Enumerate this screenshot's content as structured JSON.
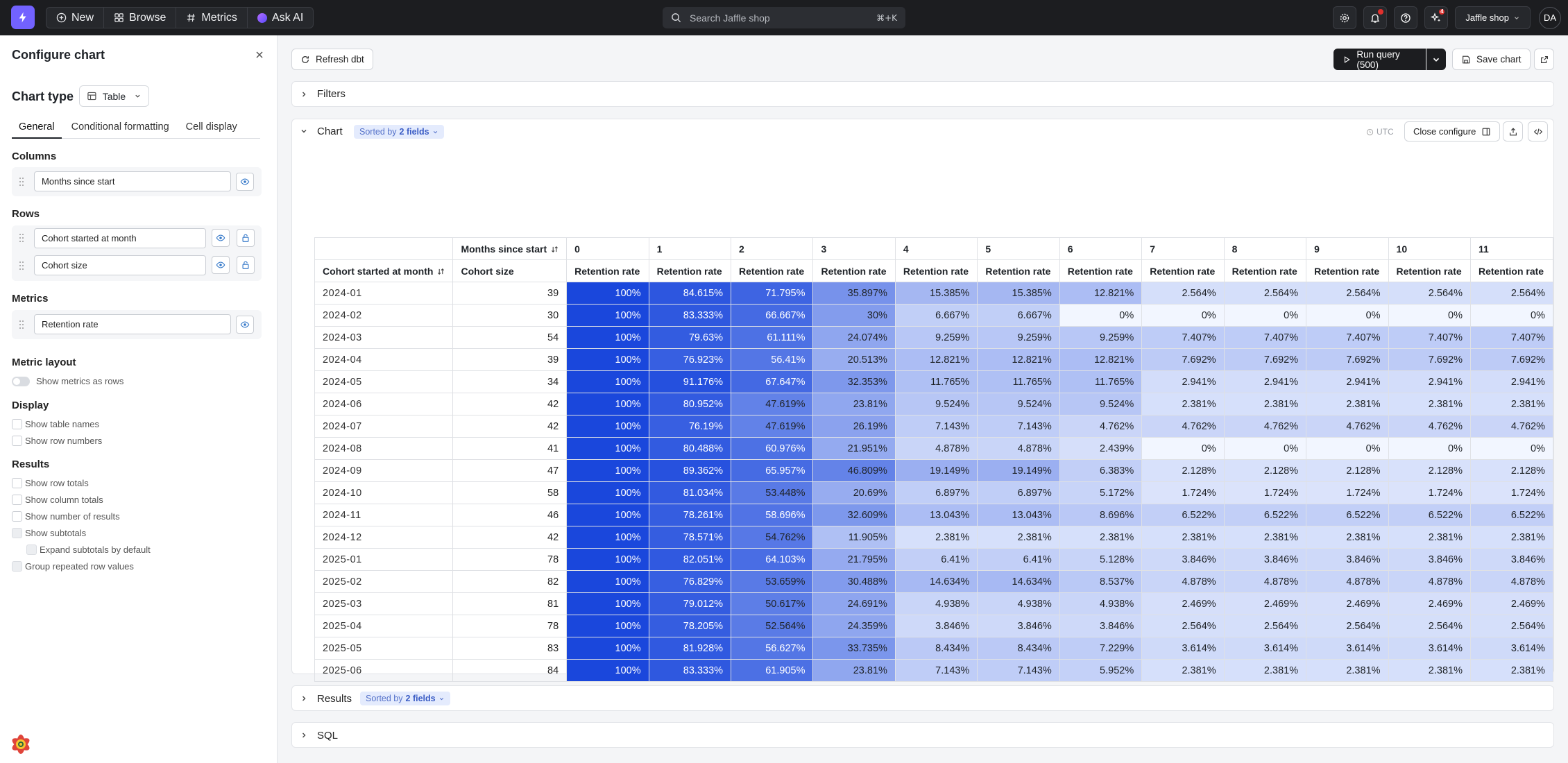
{
  "topbar": {
    "nav": [
      {
        "label": "New",
        "icon": "plus-circle-icon"
      },
      {
        "label": "Browse",
        "icon": "grid-icon"
      },
      {
        "label": "Metrics",
        "icon": "hash-icon"
      },
      {
        "label": "Ask AI",
        "icon": "ai-orb-icon"
      }
    ],
    "search_placeholder": "Search Jaffle shop",
    "search_shortcut": "⌘+K",
    "notifications_badge": "",
    "ai_badge": "4",
    "org_name": "Jaffle shop",
    "avatar_initials": "DA"
  },
  "sidebar": {
    "title": "Configure chart",
    "chart_type_label": "Chart type",
    "chart_type_value": "Table",
    "tabs": [
      "General",
      "Conditional formatting",
      "Cell display"
    ],
    "active_tab": "General",
    "columns_label": "Columns",
    "columns": [
      "Months since start"
    ],
    "rows_label": "Rows",
    "rows": [
      "Cohort started at month",
      "Cohort size"
    ],
    "metrics_label": "Metrics",
    "metrics": [
      "Retention rate"
    ],
    "metric_layout_label": "Metric layout",
    "metric_layout_toggle": "Show metrics as rows",
    "display_label": "Display",
    "display_options": [
      "Show table names",
      "Show row numbers"
    ],
    "results_label": "Results",
    "results_options": [
      "Show row totals",
      "Show column totals",
      "Show number of results",
      "Show subtotals",
      "Expand subtotals by default",
      "Group repeated row values"
    ]
  },
  "toolbar": {
    "refresh_label": "Refresh dbt",
    "run_label": "Run query (500)",
    "save_label": "Save chart"
  },
  "sections": {
    "filters": "Filters",
    "chart": "Chart",
    "sorted_prefix": "Sorted by",
    "sorted_value": "2 fields",
    "utc": "UTC",
    "close_configure": "Close configure",
    "results": "Results",
    "sql": "SQL"
  },
  "table": {
    "pivot_header": "Months since start",
    "row_dim_header": "Cohort started at month",
    "size_header": "Cohort size",
    "metric_header": "Retention rate",
    "months": [
      "0",
      "1",
      "2",
      "3",
      "4",
      "5",
      "6",
      "7",
      "8",
      "9",
      "10",
      "11"
    ],
    "rows": [
      {
        "cohort": "2024-01",
        "size": "39",
        "values": [
          "100%",
          "84.615%",
          "71.795%",
          "35.897%",
          "15.385%",
          "15.385%",
          "12.821%",
          "2.564%",
          "2.564%",
          "2.564%",
          "2.564%",
          "2.564%"
        ]
      },
      {
        "cohort": "2024-02",
        "size": "30",
        "values": [
          "100%",
          "83.333%",
          "66.667%",
          "30%",
          "6.667%",
          "6.667%",
          "0%",
          "0%",
          "0%",
          "0%",
          "0%",
          "0%"
        ]
      },
      {
        "cohort": "2024-03",
        "size": "54",
        "values": [
          "100%",
          "79.63%",
          "61.111%",
          "24.074%",
          "9.259%",
          "9.259%",
          "9.259%",
          "7.407%",
          "7.407%",
          "7.407%",
          "7.407%",
          "7.407%"
        ]
      },
      {
        "cohort": "2024-04",
        "size": "39",
        "values": [
          "100%",
          "76.923%",
          "56.41%",
          "20.513%",
          "12.821%",
          "12.821%",
          "12.821%",
          "7.692%",
          "7.692%",
          "7.692%",
          "7.692%",
          "7.692%"
        ]
      },
      {
        "cohort": "2024-05",
        "size": "34",
        "values": [
          "100%",
          "91.176%",
          "67.647%",
          "32.353%",
          "11.765%",
          "11.765%",
          "11.765%",
          "2.941%",
          "2.941%",
          "2.941%",
          "2.941%",
          "2.941%"
        ]
      },
      {
        "cohort": "2024-06",
        "size": "42",
        "values": [
          "100%",
          "80.952%",
          "47.619%",
          "23.81%",
          "9.524%",
          "9.524%",
          "9.524%",
          "2.381%",
          "2.381%",
          "2.381%",
          "2.381%",
          "2.381%"
        ]
      },
      {
        "cohort": "2024-07",
        "size": "42",
        "values": [
          "100%",
          "76.19%",
          "47.619%",
          "26.19%",
          "7.143%",
          "7.143%",
          "4.762%",
          "4.762%",
          "4.762%",
          "4.762%",
          "4.762%",
          "4.762%"
        ]
      },
      {
        "cohort": "2024-08",
        "size": "41",
        "values": [
          "100%",
          "80.488%",
          "60.976%",
          "21.951%",
          "4.878%",
          "4.878%",
          "2.439%",
          "0%",
          "0%",
          "0%",
          "0%",
          "0%"
        ]
      },
      {
        "cohort": "2024-09",
        "size": "47",
        "values": [
          "100%",
          "89.362%",
          "65.957%",
          "46.809%",
          "19.149%",
          "19.149%",
          "6.383%",
          "2.128%",
          "2.128%",
          "2.128%",
          "2.128%",
          "2.128%"
        ]
      },
      {
        "cohort": "2024-10",
        "size": "58",
        "values": [
          "100%",
          "81.034%",
          "53.448%",
          "20.69%",
          "6.897%",
          "6.897%",
          "5.172%",
          "1.724%",
          "1.724%",
          "1.724%",
          "1.724%",
          "1.724%"
        ]
      },
      {
        "cohort": "2024-11",
        "size": "46",
        "values": [
          "100%",
          "78.261%",
          "58.696%",
          "32.609%",
          "13.043%",
          "13.043%",
          "8.696%",
          "6.522%",
          "6.522%",
          "6.522%",
          "6.522%",
          "6.522%"
        ]
      },
      {
        "cohort": "2024-12",
        "size": "42",
        "values": [
          "100%",
          "78.571%",
          "54.762%",
          "11.905%",
          "2.381%",
          "2.381%",
          "2.381%",
          "2.381%",
          "2.381%",
          "2.381%",
          "2.381%",
          "2.381%"
        ]
      },
      {
        "cohort": "2025-01",
        "size": "78",
        "values": [
          "100%",
          "82.051%",
          "64.103%",
          "21.795%",
          "6.41%",
          "6.41%",
          "5.128%",
          "3.846%",
          "3.846%",
          "3.846%",
          "3.846%",
          "3.846%"
        ]
      },
      {
        "cohort": "2025-02",
        "size": "82",
        "values": [
          "100%",
          "76.829%",
          "53.659%",
          "30.488%",
          "14.634%",
          "14.634%",
          "8.537%",
          "4.878%",
          "4.878%",
          "4.878%",
          "4.878%",
          "4.878%"
        ]
      },
      {
        "cohort": "2025-03",
        "size": "81",
        "values": [
          "100%",
          "79.012%",
          "50.617%",
          "24.691%",
          "4.938%",
          "4.938%",
          "4.938%",
          "2.469%",
          "2.469%",
          "2.469%",
          "2.469%",
          "2.469%"
        ]
      },
      {
        "cohort": "2025-04",
        "size": "78",
        "values": [
          "100%",
          "78.205%",
          "52.564%",
          "24.359%",
          "3.846%",
          "3.846%",
          "3.846%",
          "2.564%",
          "2.564%",
          "2.564%",
          "2.564%",
          "2.564%"
        ]
      },
      {
        "cohort": "2025-05",
        "size": "83",
        "values": [
          "100%",
          "81.928%",
          "56.627%",
          "33.735%",
          "8.434%",
          "8.434%",
          "7.229%",
          "3.614%",
          "3.614%",
          "3.614%",
          "3.614%",
          "3.614%"
        ]
      },
      {
        "cohort": "2025-06",
        "size": "84",
        "values": [
          "100%",
          "83.333%",
          "61.905%",
          "23.81%",
          "7.143%",
          "7.143%",
          "5.952%",
          "2.381%",
          "2.381%",
          "2.381%",
          "2.381%",
          "2.381%"
        ]
      }
    ]
  },
  "colors": {
    "accent": "#1c1d20",
    "brand": "#7262ff",
    "heat_max": "#1a47dc",
    "heat_min": "#f2f6ff"
  }
}
